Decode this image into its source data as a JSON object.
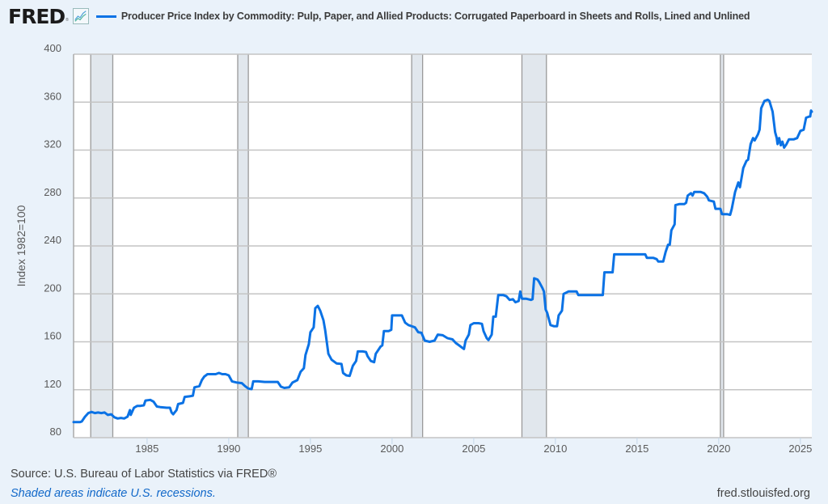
{
  "header": {
    "logo_text": "FRED",
    "logo_mark": "®",
    "logo_icon": "line-chart-icon",
    "series_title": "Producer Price Index by Commodity: Pulp, Paper, and Allied Products: Corrugated Paperboard in Sheets and Rolls, Lined and Unlined",
    "series_color": "#0b72e5"
  },
  "footer": {
    "source": "Source: U.S. Bureau of Labor Statistics via FRED®",
    "recession_note": "Shaded areas indicate U.S. recessions.",
    "url": "fred.stlouisfed.org"
  },
  "chart_data": {
    "type": "line",
    "title": "Producer Price Index by Commodity: Pulp, Paper, and Allied Products: Corrugated Paperboard in Sheets and Rolls, Lined and Unlined",
    "xlabel": "",
    "ylabel": "Index 1982=100",
    "xlim": [
      1980.5,
      2025.7
    ],
    "ylim": [
      80,
      400
    ],
    "yticks": [
      80,
      120,
      160,
      200,
      240,
      280,
      320,
      360,
      400
    ],
    "xticks": [
      1985,
      1990,
      1995,
      2000,
      2005,
      2010,
      2015,
      2020,
      2025
    ],
    "grid": "horizontal",
    "legend": "top-left",
    "recessions": [
      [
        1981.55,
        1982.9
      ],
      [
        1990.55,
        1991.2
      ],
      [
        2001.2,
        2001.87
      ],
      [
        2007.95,
        2009.45
      ],
      [
        2020.1,
        2020.3
      ]
    ],
    "series": [
      {
        "name": "Producer Price Index by Commodity: Corrugated Paperboard in Sheets and Rolls, Lined and Unlined",
        "color": "#0b72e5",
        "points": [
          [
            1980.5,
            93
          ],
          [
            1980.9,
            93
          ],
          [
            1981.0,
            93.5
          ],
          [
            1981.2,
            97.5
          ],
          [
            1981.4,
            100.5
          ],
          [
            1981.6,
            101.5
          ],
          [
            1981.8,
            100.5
          ],
          [
            1982.0,
            101
          ],
          [
            1982.2,
            100.5
          ],
          [
            1982.4,
            101
          ],
          [
            1982.6,
            99
          ],
          [
            1982.8,
            99.5
          ],
          [
            1983.0,
            97
          ],
          [
            1983.2,
            96
          ],
          [
            1983.4,
            96.5
          ],
          [
            1983.6,
            96
          ],
          [
            1983.8,
            97.5
          ],
          [
            1983.95,
            103
          ],
          [
            1984.0,
            99
          ],
          [
            1984.2,
            105
          ],
          [
            1984.4,
            106.5
          ],
          [
            1984.6,
            106.5
          ],
          [
            1984.8,
            107
          ],
          [
            1984.9,
            111
          ],
          [
            1985.2,
            111.5
          ],
          [
            1985.4,
            110
          ],
          [
            1985.6,
            106
          ],
          [
            1985.8,
            105.5
          ],
          [
            1986.2,
            105
          ],
          [
            1986.4,
            105
          ],
          [
            1986.5,
            101
          ],
          [
            1986.6,
            99.5
          ],
          [
            1986.8,
            103
          ],
          [
            1986.9,
            108
          ],
          [
            1987.2,
            109
          ],
          [
            1987.3,
            114
          ],
          [
            1987.6,
            114.5
          ],
          [
            1987.8,
            115
          ],
          [
            1987.9,
            122
          ],
          [
            1988.2,
            123
          ],
          [
            1988.35,
            128
          ],
          [
            1988.5,
            131
          ],
          [
            1988.7,
            133
          ],
          [
            1989.0,
            133
          ],
          [
            1989.2,
            133
          ],
          [
            1989.4,
            134
          ],
          [
            1989.6,
            133
          ],
          [
            1989.8,
            133
          ],
          [
            1990.0,
            132
          ],
          [
            1990.2,
            127
          ],
          [
            1990.5,
            126
          ],
          [
            1990.8,
            125.5
          ],
          [
            1991.0,
            123
          ],
          [
            1991.2,
            121
          ],
          [
            1991.4,
            120.5
          ],
          [
            1991.5,
            127
          ],
          [
            1991.8,
            127
          ],
          [
            1992.2,
            126.5
          ],
          [
            1992.8,
            126.5
          ],
          [
            1993.0,
            126.5
          ],
          [
            1993.2,
            122.5
          ],
          [
            1993.4,
            121.5
          ],
          [
            1993.7,
            122
          ],
          [
            1993.9,
            126
          ],
          [
            1994.2,
            128
          ],
          [
            1994.4,
            135
          ],
          [
            1994.6,
            138
          ],
          [
            1994.7,
            149
          ],
          [
            1994.9,
            158
          ],
          [
            1995.0,
            168
          ],
          [
            1995.2,
            172
          ],
          [
            1995.3,
            188
          ],
          [
            1995.45,
            190
          ],
          [
            1995.6,
            186
          ],
          [
            1995.8,
            178
          ],
          [
            1995.9,
            170
          ],
          [
            1996.0,
            160
          ],
          [
            1996.1,
            150
          ],
          [
            1996.3,
            145
          ],
          [
            1996.6,
            142
          ],
          [
            1996.9,
            141.5
          ],
          [
            1997.0,
            134
          ],
          [
            1997.2,
            132
          ],
          [
            1997.4,
            131.5
          ],
          [
            1997.6,
            140
          ],
          [
            1997.8,
            144
          ],
          [
            1997.9,
            152
          ],
          [
            1998.2,
            152
          ],
          [
            1998.4,
            151.5
          ],
          [
            1998.5,
            148
          ],
          [
            1998.7,
            144
          ],
          [
            1998.9,
            143
          ],
          [
            1999.0,
            150
          ],
          [
            1999.3,
            156
          ],
          [
            1999.4,
            157
          ],
          [
            1999.5,
            169
          ],
          [
            1999.8,
            169
          ],
          [
            1999.95,
            170
          ],
          [
            2000.0,
            182
          ],
          [
            2000.5,
            182
          ],
          [
            2000.6,
            182
          ],
          [
            2000.8,
            176
          ],
          [
            2001.0,
            174
          ],
          [
            2001.4,
            172
          ],
          [
            2001.6,
            168
          ],
          [
            2001.8,
            167.5
          ],
          [
            2002.0,
            161
          ],
          [
            2002.3,
            160
          ],
          [
            2002.6,
            161
          ],
          [
            2002.8,
            166
          ],
          [
            2003.1,
            165.5
          ],
          [
            2003.4,
            163
          ],
          [
            2003.7,
            162
          ],
          [
            2003.9,
            159
          ],
          [
            2004.1,
            157
          ],
          [
            2004.3,
            155
          ],
          [
            2004.4,
            154
          ],
          [
            2004.5,
            161
          ],
          [
            2004.7,
            166
          ],
          [
            2004.8,
            174
          ],
          [
            2005.0,
            175.5
          ],
          [
            2005.3,
            175.5
          ],
          [
            2005.5,
            175
          ],
          [
            2005.6,
            169
          ],
          [
            2005.8,
            163
          ],
          [
            2005.9,
            161.5
          ],
          [
            2006.1,
            166
          ],
          [
            2006.2,
            181
          ],
          [
            2006.35,
            181
          ],
          [
            2006.5,
            199
          ],
          [
            2006.8,
            199
          ],
          [
            2007.0,
            198
          ],
          [
            2007.2,
            195
          ],
          [
            2007.4,
            195.5
          ],
          [
            2007.55,
            193
          ],
          [
            2007.75,
            194
          ],
          [
            2007.85,
            202
          ],
          [
            2007.95,
            196
          ],
          [
            2008.2,
            196
          ],
          [
            2008.5,
            195
          ],
          [
            2008.6,
            195.5
          ],
          [
            2008.7,
            213
          ],
          [
            2008.9,
            212
          ],
          [
            2009.0,
            210
          ],
          [
            2009.2,
            205
          ],
          [
            2009.3,
            202
          ],
          [
            2009.4,
            187
          ],
          [
            2009.5,
            184
          ],
          [
            2009.7,
            174
          ],
          [
            2009.9,
            173
          ],
          [
            2010.1,
            173
          ],
          [
            2010.2,
            182
          ],
          [
            2010.4,
            186
          ],
          [
            2010.5,
            200
          ],
          [
            2010.8,
            202
          ],
          [
            2011.2,
            202
          ],
          [
            2011.3,
            202
          ],
          [
            2011.4,
            199
          ],
          [
            2012.5,
            199
          ],
          [
            2012.9,
            199
          ],
          [
            2013.0,
            218
          ],
          [
            2013.5,
            218
          ],
          [
            2013.6,
            233
          ],
          [
            2014.5,
            233
          ],
          [
            2015.0,
            233
          ],
          [
            2015.5,
            233
          ],
          [
            2015.6,
            230
          ],
          [
            2016.0,
            230
          ],
          [
            2016.2,
            229
          ],
          [
            2016.3,
            227
          ],
          [
            2016.6,
            227
          ],
          [
            2016.75,
            235
          ],
          [
            2016.9,
            241
          ],
          [
            2017.0,
            241
          ],
          [
            2017.1,
            253
          ],
          [
            2017.3,
            258
          ],
          [
            2017.35,
            274
          ],
          [
            2017.6,
            275
          ],
          [
            2017.9,
            275
          ],
          [
            2018.0,
            276
          ],
          [
            2018.1,
            282
          ],
          [
            2018.3,
            284
          ],
          [
            2018.4,
            282
          ],
          [
            2018.5,
            285
          ],
          [
            2018.9,
            285
          ],
          [
            2019.1,
            284
          ],
          [
            2019.3,
            281
          ],
          [
            2019.4,
            278
          ],
          [
            2019.7,
            277
          ],
          [
            2019.8,
            271
          ],
          [
            2020.1,
            271
          ],
          [
            2020.2,
            266.5
          ],
          [
            2020.5,
            266.5
          ],
          [
            2020.7,
            266
          ],
          [
            2020.8,
            271
          ],
          [
            2021.0,
            285
          ],
          [
            2021.2,
            293
          ],
          [
            2021.3,
            289
          ],
          [
            2021.5,
            305
          ],
          [
            2021.7,
            311
          ],
          [
            2021.8,
            312
          ],
          [
            2021.95,
            325
          ],
          [
            2022.1,
            330
          ],
          [
            2022.2,
            328
          ],
          [
            2022.4,
            333
          ],
          [
            2022.5,
            337
          ],
          [
            2022.6,
            355
          ],
          [
            2022.8,
            361
          ],
          [
            2023.0,
            362
          ],
          [
            2023.1,
            361
          ],
          [
            2023.3,
            352
          ],
          [
            2023.45,
            335
          ],
          [
            2023.55,
            330
          ],
          [
            2023.6,
            325
          ],
          [
            2023.7,
            330
          ],
          [
            2023.8,
            324
          ],
          [
            2023.9,
            327
          ],
          [
            2024.0,
            322
          ],
          [
            2024.15,
            325
          ],
          [
            2024.3,
            329
          ],
          [
            2024.6,
            329
          ],
          [
            2024.8,
            330
          ],
          [
            2025.0,
            336
          ],
          [
            2025.2,
            337
          ],
          [
            2025.35,
            347
          ],
          [
            2025.55,
            348
          ],
          [
            2025.6,
            348
          ],
          [
            2025.65,
            353
          ],
          [
            2025.7,
            352
          ]
        ]
      }
    ]
  }
}
